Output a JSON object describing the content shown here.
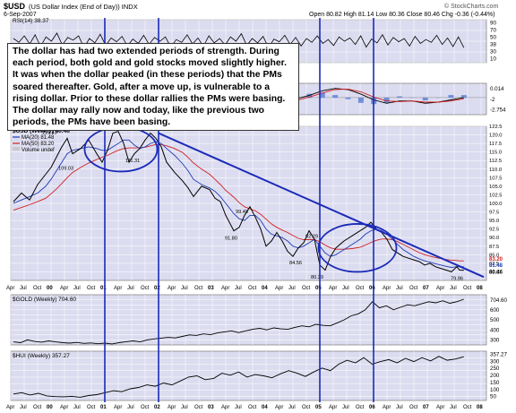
{
  "header": {
    "symbol": "$USD",
    "description": "(US Dollar Index (End of Day)) INDX",
    "date": "6-Sep-2007",
    "quote": "Open 80.82  High 81.14  Low 80.36  Close 80.46  Chg -0.36 (-0.44%)",
    "credit": "© StockCharts.com"
  },
  "annotation": "The dollar has had two extended periods of strength. During each period, both gold and gold stocks moved slightly higher. It was when the dollar peaked (in these periods) that the PMs soared thereafter. Gold, after a move up, is vulnerable to a rising dollar. Prior to these dollar rallies the PMs were basing. The dollar may rally now and today, like the previous two periods, the PMs have been basing.",
  "colors": {
    "panel_bg": "#dcdcf0",
    "grid": "#ffffff",
    "price": "#000000",
    "ma20": "#1e3cb4",
    "ma50": "#d02020",
    "trendline": "#1a2ab8",
    "markers": "#1a2ab8"
  },
  "x_axis_labels": [
    "Apr",
    "Jul",
    "Oct",
    "00",
    "Apr",
    "Jul",
    "Oct",
    "01",
    "Apr",
    "Jul",
    "Oct",
    "02",
    "Apr",
    "Jul",
    "Oct",
    "03",
    "Apr",
    "Jul",
    "Oct",
    "04",
    "Apr",
    "Jul",
    "Oct",
    "05",
    "Apr",
    "Jul",
    "Oct",
    "06",
    "Apr",
    "Jul",
    "Oct",
    "07",
    "Apr",
    "Jul",
    "Oct",
    "08"
  ],
  "chart_data": [
    {
      "type": "line",
      "panel": "RSI",
      "title": "RSI(14) 38.37",
      "ylim": [
        10,
        90
      ],
      "y_ticks": [
        10,
        30,
        50,
        70,
        90
      ],
      "right_labels": [
        "90",
        "70",
        "50",
        "38",
        "30",
        "10"
      ],
      "values": [
        55,
        48,
        60,
        45,
        62,
        40,
        58,
        50,
        65,
        43,
        57,
        52,
        60,
        38,
        55,
        47,
        63,
        42,
        56,
        49,
        59,
        41,
        54,
        46,
        61,
        44,
        57,
        50,
        58,
        39,
        53,
        48,
        62,
        45,
        56,
        40,
        60,
        47,
        55,
        43,
        58,
        50,
        64,
        42,
        55,
        47,
        59,
        38,
        54,
        49,
        61,
        44,
        57,
        41,
        55,
        48,
        60,
        46,
        53,
        42,
        58,
        50,
        56,
        44,
        60,
        39,
        54,
        47,
        62,
        43,
        57,
        49,
        55,
        41,
        59,
        46,
        53,
        48,
        61,
        44,
        56,
        40,
        58,
        38
      ]
    },
    {
      "type": "line",
      "panel": "MACD",
      "right_labels": [
        "0.014",
        "-2",
        "-2.754"
      ],
      "macd": [
        1.0,
        1.6,
        1.2,
        0.4,
        -0.6,
        -1.4,
        -1.0,
        -0.2,
        0.6,
        1.0,
        0.6,
        -0.2,
        -1.2,
        -2.0,
        -2.4,
        -2.0,
        -1.2,
        -0.8,
        -1.4,
        -2.0,
        -1.6,
        -0.8,
        -0.2,
        0.4,
        1.2,
        1.6,
        1.4,
        0.6,
        -0.4,
        -1.0,
        -0.6,
        -0.6,
        -1.0,
        -0.8,
        -0.4,
        0.0
      ],
      "signal": [
        0.6,
        1.2,
        1.3,
        0.8,
        0.0,
        -0.8,
        -1.1,
        -0.6,
        0.2,
        0.8,
        0.8,
        0.2,
        -0.6,
        -1.5,
        -2.1,
        -2.2,
        -1.6,
        -1.0,
        -1.2,
        -1.7,
        -1.7,
        -1.1,
        -0.5,
        0.1,
        0.8,
        1.4,
        1.5,
        1.0,
        0.1,
        -0.6,
        -0.7,
        -0.6,
        -0.8,
        -0.8,
        -0.6,
        -0.2
      ]
    },
    {
      "type": "line",
      "panel": "USD",
      "title": "$USD (Weekly) 80.46",
      "legend": [
        "MA(20) 81.48",
        "MA(50) 83.20",
        "Volume undef"
      ],
      "ylim": [
        77.5,
        122.5
      ],
      "y_ticks": [
        80,
        82.5,
        85,
        87.5,
        90,
        92.5,
        95,
        97.5,
        100,
        102.5,
        105,
        107.5,
        110,
        112.5,
        115,
        117.5,
        120,
        122.5
      ],
      "right_labels": [
        "83.20",
        "81.48",
        "80.46"
      ],
      "annotations": [
        {
          "x": 2000.0,
          "y": 119.43,
          "label": "119.43"
        },
        {
          "x": 2000.3,
          "y": 109.03,
          "label": "109.03"
        },
        {
          "x": 2001.45,
          "y": 121.29,
          "label": "121.29"
        },
        {
          "x": 2001.55,
          "y": 111.31,
          "label": "111.31"
        },
        {
          "x": 2002.0,
          "y": 120.51,
          "label": "120.51"
        },
        {
          "x": 2003.6,
          "y": 99.49,
          "label": "99.49"
        },
        {
          "x": 2003.4,
          "y": 91.8,
          "label": "91.80"
        },
        {
          "x": 2004.9,
          "y": 92.29,
          "label": "92.29"
        },
        {
          "x": 2004.6,
          "y": 84.56,
          "label": "84.56"
        },
        {
          "x": 2005.0,
          "y": 80.39,
          "label": "80.39"
        },
        {
          "x": 2007.6,
          "y": 79.96,
          "label": "79.96"
        }
      ],
      "x": [
        1999.3,
        1999.45,
        1999.6,
        1999.75,
        1999.9,
        2000.0,
        2000.1,
        2000.2,
        2000.3,
        2000.4,
        2000.55,
        2000.7,
        2000.85,
        2000.95,
        2001.05,
        2001.15,
        2001.25,
        2001.35,
        2001.45,
        2001.55,
        2001.65,
        2001.75,
        2001.85,
        2001.95,
        2002.05,
        2002.15,
        2002.3,
        2002.45,
        2002.55,
        2002.65,
        2002.8,
        2002.95,
        2003.05,
        2003.15,
        2003.25,
        2003.4,
        2003.5,
        2003.6,
        2003.7,
        2003.8,
        2003.9,
        2004.0,
        2004.1,
        2004.2,
        2004.3,
        2004.4,
        2004.5,
        2004.6,
        2004.7,
        2004.8,
        2004.9,
        2005.0,
        2005.1,
        2005.2,
        2005.3,
        2005.45,
        2005.6,
        2005.75,
        2005.85,
        2005.95,
        2006.05,
        2006.15,
        2006.25,
        2006.35,
        2006.45,
        2006.55,
        2006.65,
        2006.75,
        2006.85,
        2006.95,
        2007.05,
        2007.15,
        2007.25,
        2007.35,
        2007.45,
        2007.55,
        2007.6,
        2007.68
      ],
      "price": [
        100.5,
        103.0,
        101.0,
        105.5,
        108.5,
        110.5,
        113.5,
        116.5,
        119.0,
        114.5,
        116.0,
        118.5,
        114.5,
        112.0,
        115.5,
        120.5,
        121.0,
        117.5,
        112.0,
        114.5,
        116.0,
        118.5,
        120.5,
        119.0,
        116.5,
        112.0,
        109.0,
        106.5,
        104.5,
        102.0,
        105.0,
        104.0,
        101.5,
        100.5,
        96.5,
        92.0,
        93.0,
        96.5,
        99.0,
        96.0,
        92.5,
        87.5,
        89.0,
        91.5,
        89.0,
        86.0,
        84.5,
        87.0,
        88.5,
        92.0,
        89.5,
        82.0,
        80.5,
        84.5,
        87.0,
        89.0,
        90.5,
        92.0,
        93.0,
        94.5,
        92.5,
        91.5,
        89.5,
        86.5,
        85.5,
        84.5,
        84.0,
        83.5,
        83.0,
        82.0,
        82.5,
        81.5,
        81.0,
        80.5,
        80.0,
        81.5,
        80.5,
        80.46
      ],
      "ma20": [
        100.0,
        101.0,
        102.0,
        103.0,
        105.0,
        107.0,
        109.5,
        112.0,
        114.5,
        115.5,
        116.0,
        116.5,
        116.0,
        115.5,
        115.5,
        116.5,
        117.5,
        118.5,
        118.5,
        117.0,
        116.0,
        116.5,
        117.5,
        118.0,
        117.5,
        116.0,
        114.0,
        111.5,
        109.5,
        107.0,
        105.5,
        104.5,
        103.5,
        102.0,
        100.0,
        97.0,
        95.5,
        95.0,
        96.5,
        96.5,
        95.0,
        92.5,
        91.0,
        90.5,
        90.0,
        89.0,
        87.5,
        87.0,
        87.5,
        88.5,
        89.5,
        87.5,
        85.5,
        84.5,
        85.0,
        86.5,
        88.0,
        89.5,
        91.0,
        92.0,
        92.5,
        92.0,
        91.0,
        89.5,
        88.0,
        86.5,
        85.5,
        84.5,
        83.8,
        83.2,
        82.8,
        82.4,
        82.0,
        81.6,
        81.3,
        81.5,
        81.5,
        81.48
      ],
      "ma50": [
        98.0,
        98.8,
        99.6,
        100.5,
        101.5,
        102.8,
        104.2,
        105.8,
        107.5,
        109.0,
        110.5,
        111.8,
        112.8,
        113.5,
        114.0,
        114.8,
        115.5,
        116.0,
        116.2,
        116.2,
        116.2,
        116.4,
        116.8,
        117.2,
        117.2,
        116.8,
        116.0,
        114.8,
        113.4,
        111.8,
        110.0,
        108.5,
        107.0,
        105.5,
        103.8,
        101.8,
        100.2,
        99.0,
        98.4,
        97.8,
        96.8,
        95.4,
        94.0,
        93.0,
        92.2,
        91.5,
        90.6,
        89.8,
        89.4,
        89.4,
        89.4,
        88.8,
        87.8,
        87.0,
        86.6,
        86.6,
        86.8,
        87.2,
        87.8,
        88.6,
        89.2,
        89.6,
        89.6,
        89.4,
        88.8,
        88.0,
        87.2,
        86.4,
        85.6,
        85.0,
        84.6,
        84.2,
        83.9,
        83.6,
        83.4,
        83.3,
        83.2,
        83.2
      ],
      "trendline": {
        "from": {
          "x": 2002.0,
          "y": 120.5
        },
        "to": {
          "x": 2008.05,
          "y": 78.5
        }
      },
      "ellipses": [
        {
          "center_x": 2001.3,
          "center_y": 115.8,
          "span_years": 1.35,
          "span_y": 13.0
        },
        {
          "center_x": 2005.7,
          "center_y": 87.0,
          "span_years": 1.45,
          "span_y": 14.0
        }
      ]
    },
    {
      "type": "line",
      "panel": "GOLD",
      "title": "$GOLD (Weekly) 704.60",
      "ylim": [
        250,
        750
      ],
      "y_ticks": [
        300,
        350,
        400,
        450,
        500,
        550,
        600,
        650,
        700
      ],
      "right_labels": [
        "704.60",
        "600",
        "500",
        "400",
        "300"
      ],
      "values": [
        280,
        272,
        300,
        285,
        278,
        290,
        280,
        272,
        268,
        275,
        265,
        270,
        262,
        268,
        260,
        272,
        282,
        290,
        280,
        300,
        310,
        318,
        325,
        320,
        335,
        350,
        345,
        360,
        352,
        370,
        380,
        390,
        372,
        390,
        405,
        415,
        400,
        420,
        410,
        405,
        425,
        440,
        430,
        455,
        445,
        440,
        470,
        500,
        540,
        560,
        600,
        680,
        620,
        640,
        600,
        625,
        650,
        640,
        660,
        680,
        670,
        690,
        665,
        680,
        705
      ]
    },
    {
      "type": "line",
      "panel": "HUI",
      "title": "$HUI (Weekly) 357.27",
      "ylim": [
        20,
        400
      ],
      "y_ticks": [
        50,
        100,
        150,
        200,
        250,
        300,
        350
      ],
      "right_labels": [
        "357.27",
        "300",
        "250",
        "200",
        "150",
        "100",
        "50"
      ],
      "values": [
        70,
        80,
        62,
        75,
        55,
        50,
        48,
        52,
        45,
        58,
        65,
        80,
        95,
        88,
        110,
        120,
        140,
        130,
        155,
        140,
        170,
        200,
        210,
        180,
        190,
        230,
        215,
        240,
        200,
        220,
        210,
        195,
        225,
        250,
        230,
        205,
        240,
        270,
        250,
        300,
        330,
        310,
        350,
        300,
        320,
        335,
        310,
        345,
        320,
        350,
        325,
        360,
        330,
        340,
        357
      ]
    }
  ]
}
